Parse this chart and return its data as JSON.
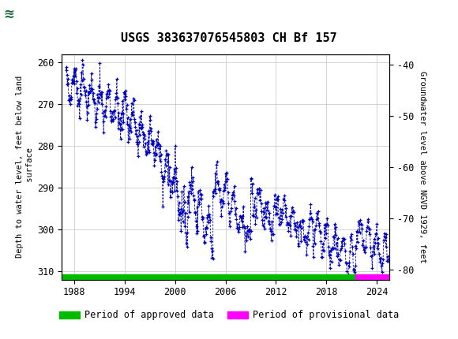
{
  "title": "USGS 383637076545803 CH Bf 157",
  "ylabel_left": "Depth to water level, feet below land\n surface",
  "ylabel_right": "Groundwater level above NGVD 1929, feet",
  "ylim_left": [
    258,
    312
  ],
  "ylim_right": [
    -38,
    -82
  ],
  "xlim": [
    1986.5,
    2025.5
  ],
  "yticks_left": [
    260,
    270,
    280,
    290,
    300,
    310
  ],
  "yticks_right": [
    -40,
    -50,
    -60,
    -70,
    -80
  ],
  "xticks": [
    1988,
    1994,
    2000,
    2006,
    2012,
    2018,
    2024
  ],
  "data_color": "#0000bb",
  "header_color": "#1a6b3c",
  "grid_color": "#cccccc",
  "bg_color": "#ffffff",
  "approved_color": "#00bb00",
  "provisional_color": "#ff00ff",
  "legend_approved": "Period of approved data",
  "legend_provisional": "Period of provisional data",
  "approved_end_year": 2021.5,
  "provisional_start_year": 2021.5
}
